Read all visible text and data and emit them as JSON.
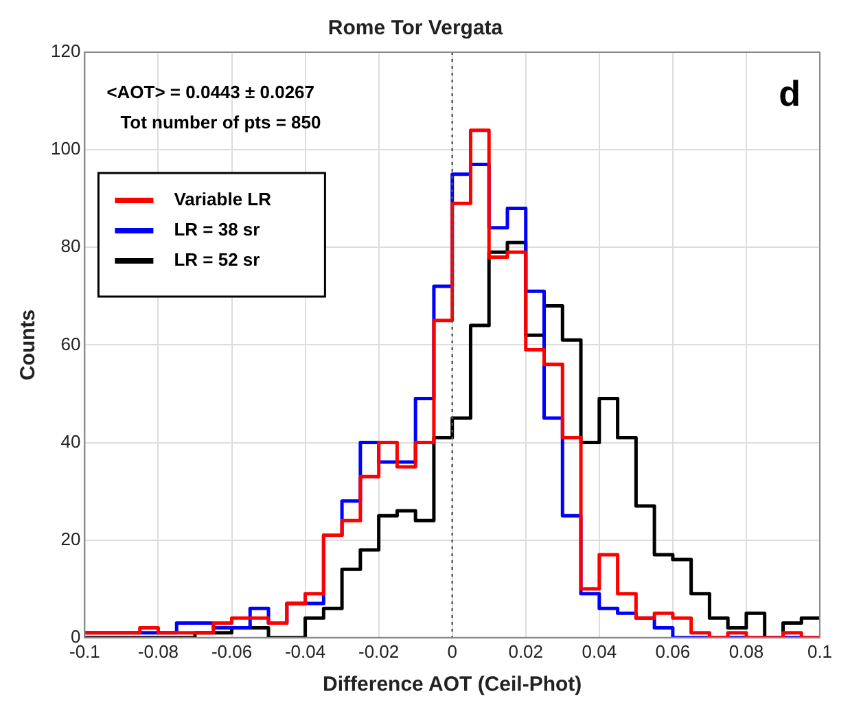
{
  "chart_data": {
    "type": "histogram",
    "title": "Rome Tor Vergata",
    "xlabel": "Difference AOT (Ceil-Phot)",
    "ylabel": "Counts",
    "bins": [
      -0.1,
      -0.095,
      -0.09,
      -0.085,
      -0.08,
      -0.075,
      -0.07,
      -0.065,
      -0.06,
      -0.055,
      -0.05,
      -0.045,
      -0.04,
      -0.035,
      -0.03,
      -0.025,
      -0.02,
      -0.015,
      -0.01,
      -0.005,
      0,
      0.005,
      0.01,
      0.015,
      0.02,
      0.025,
      0.03,
      0.035,
      0.04,
      0.045,
      0.05,
      0.055,
      0.06,
      0.065,
      0.07,
      0.075,
      0.08,
      0.085,
      0.09,
      0.095,
      0.1
    ],
    "series": [
      {
        "name": "Variable LR",
        "color": "#ff0000",
        "values": [
          1,
          1,
          1,
          2,
          1,
          1,
          1,
          3,
          4,
          4,
          3,
          7,
          9,
          21,
          24,
          33,
          40,
          35,
          40,
          65,
          89,
          104,
          78,
          79,
          59,
          56,
          41,
          10,
          17,
          9,
          4,
          5,
          4,
          1,
          0,
          1,
          0,
          0,
          1,
          0
        ]
      },
      {
        "name": "LR = 38 sr",
        "color": "#0000ff",
        "values": [
          1,
          1,
          1,
          1,
          1,
          3,
          3,
          2,
          2,
          6,
          3,
          7,
          7,
          21,
          28,
          40,
          36,
          36,
          49,
          72,
          95,
          97,
          84,
          88,
          71,
          45,
          25,
          9,
          6,
          5,
          4,
          2,
          0,
          0,
          0,
          0,
          0,
          0,
          0,
          0
        ]
      },
      {
        "name": "LR = 52 sr",
        "color": "#000000",
        "values": [
          0,
          0,
          0,
          0,
          0,
          0,
          1,
          1,
          2,
          2,
          0,
          0,
          4,
          6,
          14,
          18,
          25,
          26,
          24,
          41,
          45,
          64,
          79,
          81,
          62,
          68,
          61,
          40,
          49,
          41,
          27,
          17,
          16,
          9,
          4,
          2,
          5,
          0,
          3,
          4
        ]
      }
    ],
    "xlim": [
      -0.1,
      0.1
    ],
    "xticks": [
      -0.1,
      -0.08,
      -0.06,
      -0.04,
      -0.02,
      0,
      0.02,
      0.04,
      0.06,
      0.08,
      0.1
    ],
    "ylim": [
      0,
      120
    ],
    "yticks": [
      0,
      20,
      40,
      60,
      80,
      100,
      120
    ],
    "grid": true,
    "legend": "top left",
    "line_style": "solid",
    "ref_lines": [
      {
        "axis": "x",
        "value": 0,
        "color": "#555555",
        "line_style": "dotted"
      }
    ],
    "annotations": [
      "<AOT> = 0.0443 ± 0.0267",
      "Tot number of pts = 850",
      "d"
    ]
  }
}
